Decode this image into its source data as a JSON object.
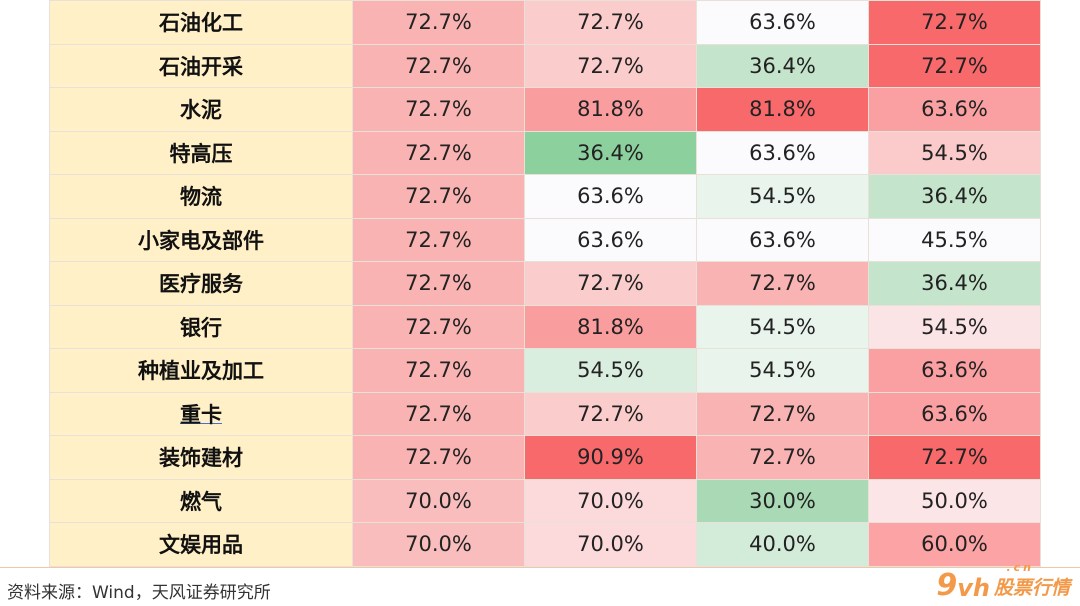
{
  "table": {
    "rows": [
      {
        "name": "石油化工",
        "values": [
          "72.7%",
          "72.7%",
          "63.6%",
          "72.7%"
        ],
        "colors": [
          "#f9b3b3",
          "#fbcccc",
          "#fbfbfd",
          "#f8696b"
        ]
      },
      {
        "name": "石油开采",
        "values": [
          "72.7%",
          "72.7%",
          "36.4%",
          "72.7%"
        ],
        "colors": [
          "#f9b3b3",
          "#fbcccc",
          "#c4e4cc",
          "#f8696b"
        ]
      },
      {
        "name": "水泥",
        "values": [
          "72.7%",
          "81.8%",
          "81.8%",
          "63.6%"
        ],
        "colors": [
          "#f9b3b3",
          "#fa9d9f",
          "#f8696b",
          "#fba0a2"
        ]
      },
      {
        "name": "特高压",
        "values": [
          "72.7%",
          "36.4%",
          "63.6%",
          "54.5%"
        ],
        "colors": [
          "#f9b3b3",
          "#8cd19d",
          "#fbfbfd",
          "#fbcbcc"
        ]
      },
      {
        "name": "物流",
        "values": [
          "72.7%",
          "63.6%",
          "54.5%",
          "36.4%"
        ],
        "colors": [
          "#f9b3b3",
          "#fbfbfd",
          "#e9f5ec",
          "#c4e4cc"
        ]
      },
      {
        "name": "小家电及部件",
        "values": [
          "72.7%",
          "63.6%",
          "63.6%",
          "45.5%"
        ],
        "colors": [
          "#f9b3b3",
          "#fbfbfd",
          "#fbfbfd",
          "#fbfbfd"
        ]
      },
      {
        "name": "医疗服务",
        "values": [
          "72.7%",
          "72.7%",
          "72.7%",
          "36.4%"
        ],
        "colors": [
          "#f9b3b3",
          "#fbcccc",
          "#f9b3b3",
          "#c4e4cc"
        ]
      },
      {
        "name": "银行",
        "values": [
          "72.7%",
          "81.8%",
          "54.5%",
          "54.5%"
        ],
        "colors": [
          "#f9b3b3",
          "#fa9d9f",
          "#e9f5ec",
          "#fbe4e5"
        ]
      },
      {
        "name": "种植业及加工",
        "values": [
          "72.7%",
          "54.5%",
          "54.5%",
          "63.6%"
        ],
        "colors": [
          "#f9b3b3",
          "#d9eedf",
          "#e9f5ec",
          "#fba0a2"
        ]
      },
      {
        "name": "重卡",
        "values": [
          "72.7%",
          "72.7%",
          "72.7%",
          "63.6%"
        ],
        "colors": [
          "#f9b3b3",
          "#fbcccc",
          "#f9b3b3",
          "#fba0a2"
        ]
      },
      {
        "name": "装饰建材",
        "values": [
          "72.7%",
          "90.9%",
          "72.7%",
          "72.7%"
        ],
        "colors": [
          "#f9b3b3",
          "#f8696b",
          "#f9b3b3",
          "#f8696b"
        ]
      },
      {
        "name": "燃气",
        "values": [
          "70.0%",
          "70.0%",
          "30.0%",
          "50.0%"
        ],
        "colors": [
          "#f9bdbd",
          "#fcd9da",
          "#a9dab5",
          "#fce5e6"
        ]
      },
      {
        "name": "文娱用品",
        "values": [
          "70.0%",
          "70.0%",
          "40.0%",
          "60.0%"
        ],
        "colors": [
          "#f9bdbd",
          "#fcd9da",
          "#d3ecd9",
          "#fba3a5"
        ]
      }
    ]
  },
  "footer": {
    "source": "资料来源：Wind，天风证券研究所"
  },
  "watermark": {
    "nine": "9",
    "vh": "vh",
    "cn": ".cn",
    "text": "股票行情"
  },
  "colors": {
    "name_bg": "#fff0c8",
    "watermark": "#f39a4a",
    "divider": "#f0c8a8"
  }
}
